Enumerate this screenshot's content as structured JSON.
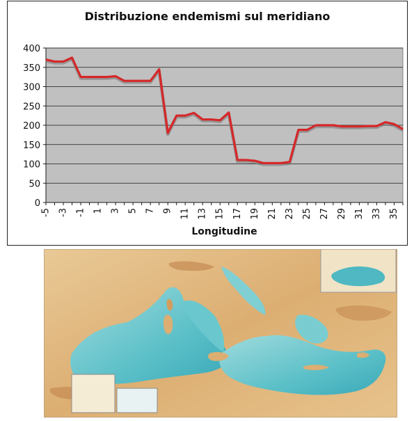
{
  "chart_data": {
    "type": "line",
    "title": "Distribuzione endemismi sul meridiano",
    "xlabel": "Longitudine",
    "ylabel": "",
    "x": [
      -5,
      -4,
      -3,
      -2,
      -1,
      0,
      1,
      2,
      3,
      4,
      5,
      6,
      7,
      8,
      9,
      10,
      11,
      12,
      13,
      14,
      15,
      16,
      17,
      18,
      19,
      20,
      21,
      22,
      23,
      24,
      25,
      26,
      27,
      28,
      29,
      30,
      31,
      32,
      33,
      34,
      35,
      36
    ],
    "x_tick_labels": [
      "-5",
      "-3",
      "-1",
      "1",
      "3",
      "5",
      "7",
      "9",
      "11",
      "13",
      "15",
      "17",
      "19",
      "21",
      "23",
      "25",
      "27",
      "29",
      "31",
      "33",
      "35"
    ],
    "ylim": [
      0,
      400
    ],
    "y_ticks": [
      0,
      50,
      100,
      150,
      200,
      250,
      300,
      350,
      400
    ],
    "series": [
      {
        "values": [
          370,
          365,
          365,
          375,
          325,
          325,
          325,
          325,
          327,
          315,
          315,
          315,
          315,
          345,
          180,
          225,
          225,
          232,
          215,
          215,
          213,
          233,
          110,
          110,
          108,
          102,
          102,
          102,
          105,
          188,
          188,
          200,
          200,
          200,
          197,
          197,
          197,
          198,
          198,
          208,
          203,
          190
        ],
        "color": "#d62728"
      }
    ],
    "grid": true,
    "plot_background": "#c0c0c0"
  },
  "map": {
    "description_icon": "mediterranean-relief-map",
    "sea_color": "#8fd3d6",
    "deep_sea_color": "#3fb2bf",
    "land_color": "#e3c08a",
    "mountain_color": "#c58a52"
  }
}
